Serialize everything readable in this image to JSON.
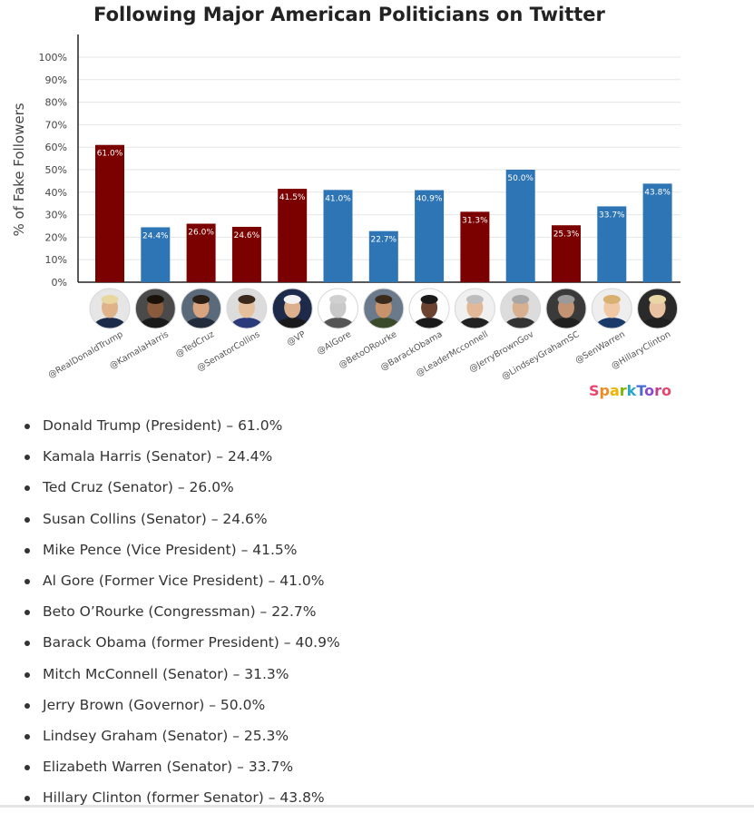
{
  "chart_data": {
    "type": "bar",
    "title": "Following Major American Politicians on Twitter",
    "ylabel": "% of Fake Followers",
    "xlabel": "",
    "ylim": [
      0,
      100
    ],
    "yticks": [
      "0%",
      "10%",
      "20%",
      "30%",
      "40%",
      "50%",
      "60%",
      "70%",
      "80%",
      "90%",
      "100%"
    ],
    "grid": true,
    "categories": [
      "@RealDonaldTrump",
      "@KamalaHarris",
      "@TedCruz",
      "@SenatorCollins",
      "@VP",
      "@AlGore",
      "@BetoORourke",
      "@BarackObama",
      "@LeaderMcconnell",
      "@JerryBrownGov",
      "@LindseyGrahamSC",
      "@SenWarren",
      "@HillaryClinton"
    ],
    "values": [
      61.0,
      24.4,
      26.0,
      24.6,
      41.5,
      41.0,
      22.7,
      40.9,
      31.3,
      50.0,
      25.3,
      33.7,
      43.8
    ],
    "data_labels": [
      "61.0%",
      "24.4%",
      "26.0%",
      "24.6%",
      "41.5%",
      "41.0%",
      "22.7%",
      "40.9%",
      "31.3%",
      "50.0%",
      "25.3%",
      "33.7%",
      "43.8%"
    ],
    "party": [
      "republican",
      "democrat",
      "republican",
      "republican",
      "republican",
      "democrat",
      "democrat",
      "democrat",
      "republican",
      "democrat",
      "republican",
      "democrat",
      "democrat"
    ],
    "colors": {
      "republican": "#7b0000",
      "democrat": "#2e75b6"
    }
  },
  "brand": "SparkToro",
  "list": [
    "Donald Trump (President) – 61.0%",
    "Kamala Harris (Senator) – 24.4%",
    "Ted Cruz (Senator) – 26.0%",
    "Susan Collins (Senator) – 24.6%",
    "Mike Pence (Vice President) – 41.5%",
    "Al Gore (Former Vice President) – 41.0%",
    "Beto O’Rourke (Congressman) – 22.7%",
    "Barack Obama (former President) – 40.9%",
    "Mitch McConnell (Senator) – 31.3%",
    "Jerry Brown (Governor) – 50.0%",
    "Lindsey Graham (Senator) – 25.3%",
    "Elizabeth Warren (Senator) – 33.7%",
    "Hillary Clinton (former Senator) – 43.8%"
  ]
}
